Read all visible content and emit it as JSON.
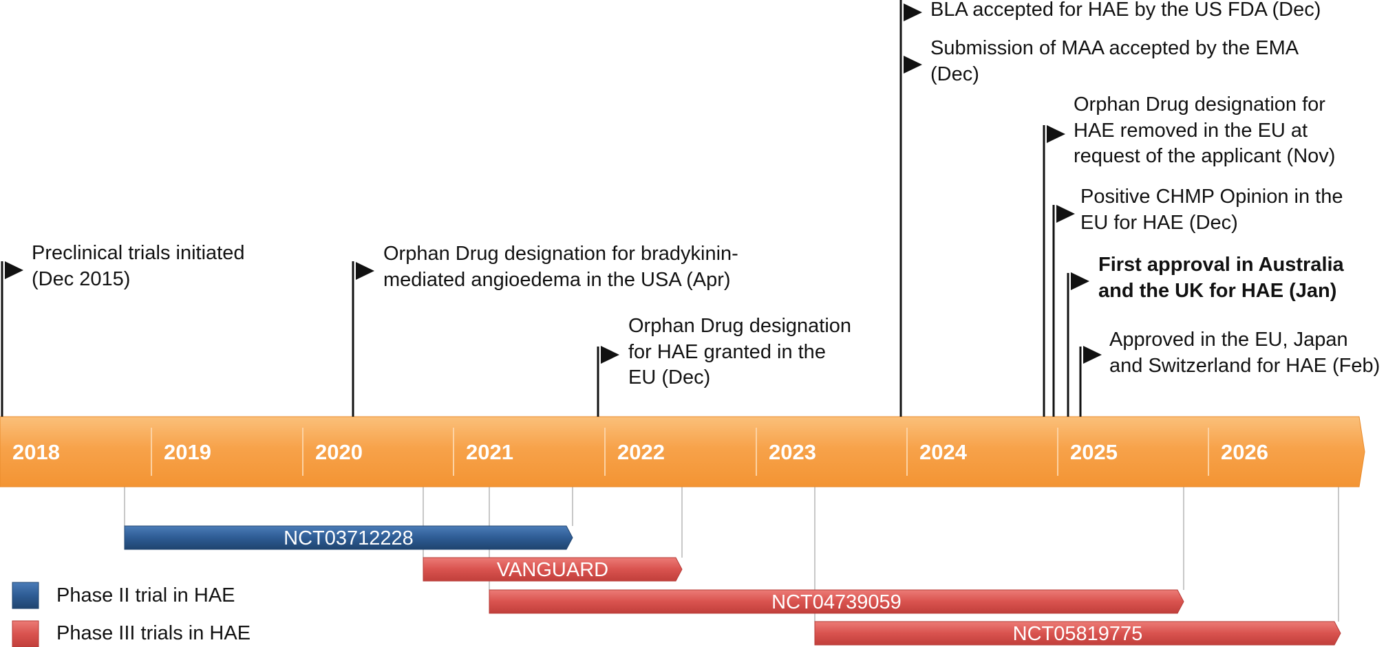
{
  "colors": {
    "timeline_orange": "#F7A24A",
    "phase2_blue": "#2E5C94",
    "phase3_red": "#D9534F",
    "flag_black": "#111111"
  },
  "years": [
    "2018",
    "2019",
    "2020",
    "2021",
    "2022",
    "2023",
    "2024",
    "2025",
    "2026"
  ],
  "events": [
    {
      "lines": [
        "Preclinical trials initiated",
        "(Dec 2015)"
      ],
      "bold": false
    },
    {
      "lines": [
        "Orphan Drug designation for bradykinin-",
        "mediated angioedema in the USA (Apr)"
      ],
      "bold": false
    },
    {
      "lines": [
        "Orphan Drug designation",
        "for HAE granted in the",
        "EU  (Dec)"
      ],
      "bold": false
    },
    {
      "lines": [
        "BLA accepted for HAE by the US FDA (Dec)"
      ],
      "bold": false
    },
    {
      "lines": [
        "Submission of MAA accepted by the EMA",
        "(Dec)"
      ],
      "bold": false
    },
    {
      "lines": [
        "Orphan Drug designation for",
        "HAE removed in the EU at",
        "request of the applicant (Nov)"
      ],
      "bold": false
    },
    {
      "lines": [
        "Positive CHMP Opinion in the",
        "EU for HAE (Dec)"
      ],
      "bold": false
    },
    {
      "lines": [
        "First approval in Australia",
        "and the UK for HAE (Jan)"
      ],
      "bold": true
    },
    {
      "lines": [
        "Approved in the EU, Japan",
        "and Switzerland for HAE (Feb)"
      ],
      "bold": false
    }
  ],
  "trials": [
    {
      "label": "NCT03712228",
      "phase": "II"
    },
    {
      "label": "VANGUARD",
      "phase": "III"
    },
    {
      "label": "NCT04739059",
      "phase": "III"
    },
    {
      "label": "NCT05819775",
      "phase": "III"
    }
  ],
  "legend": [
    {
      "label": "Phase II trial in HAE",
      "phase": "II"
    },
    {
      "label": "Phase III trials in HAE",
      "phase": "III"
    }
  ]
}
